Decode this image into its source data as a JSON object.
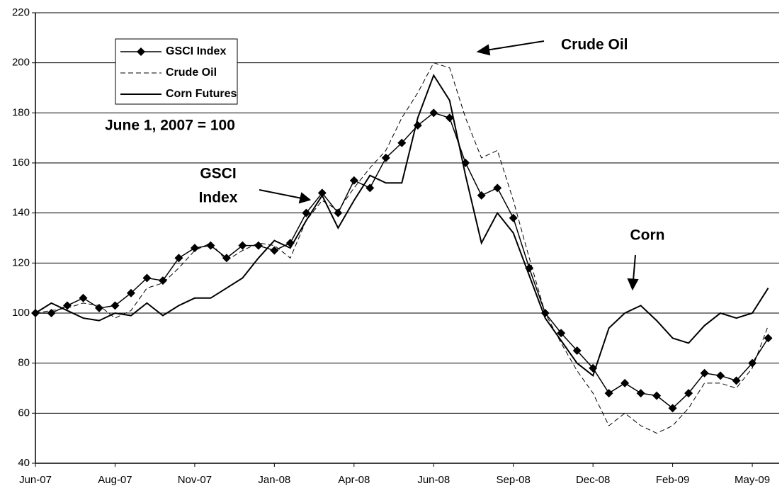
{
  "chart_data": {
    "type": "line",
    "subtitle": "June 1, 2007 = 100",
    "annotations": [
      "Crude Oil",
      "GSCI",
      "Index",
      "Corn"
    ],
    "categories": [
      "Jun-07",
      null,
      null,
      null,
      null,
      "Aug-07",
      null,
      null,
      null,
      null,
      "Nov-07",
      null,
      null,
      null,
      null,
      "Jan-08",
      null,
      null,
      null,
      null,
      "Apr-08",
      null,
      null,
      null,
      null,
      "Jun-08",
      null,
      null,
      null,
      null,
      "Sep-08",
      null,
      null,
      null,
      null,
      "Dec-08",
      null,
      null,
      null,
      null,
      "Feb-09",
      null,
      null,
      null,
      null,
      "May-09",
      null
    ],
    "ylim": [
      40,
      220
    ],
    "yticks": [
      40,
      60,
      80,
      100,
      120,
      140,
      160,
      180,
      200,
      220
    ],
    "grid": true,
    "legend": "upper-left",
    "series": [
      {
        "name": "GSCI Index",
        "color": "#000000",
        "marker": "diamond",
        "line_style": "solid",
        "values": [
          100,
          100,
          103,
          106,
          102,
          103,
          108,
          114,
          113,
          122,
          126,
          127,
          122,
          127,
          127,
          125,
          128,
          140,
          148,
          140,
          153,
          150,
          162,
          168,
          175,
          180,
          178,
          160,
          147,
          150,
          138,
          118,
          100,
          92,
          85,
          78,
          68,
          72,
          68,
          67,
          62,
          68,
          76,
          75,
          73,
          80,
          90
        ]
      },
      {
        "name": "Crude Oil",
        "color": "#000000",
        "line_style": "dashed",
        "values": [
          100,
          101,
          102,
          104,
          103,
          98,
          101,
          110,
          112,
          118,
          125,
          128,
          121,
          125,
          128,
          127,
          122,
          137,
          145,
          141,
          150,
          158,
          165,
          178,
          188,
          200,
          198,
          178,
          162,
          165,
          145,
          122,
          100,
          88,
          77,
          68,
          55,
          60,
          55,
          52,
          55,
          62,
          72,
          72,
          70,
          78,
          95
        ]
      },
      {
        "name": "Corn Futures",
        "color": "#000000",
        "line_style": "solid",
        "values": [
          100,
          104,
          101,
          98,
          97,
          100,
          99,
          104,
          99,
          103,
          106,
          106,
          110,
          114,
          122,
          129,
          126,
          137,
          147,
          134,
          145,
          155,
          152,
          152,
          178,
          195,
          185,
          155,
          128,
          140,
          132,
          115,
          98,
          89,
          80,
          75,
          94,
          100,
          103,
          97,
          90,
          88,
          95,
          100,
          98,
          100,
          110
        ]
      }
    ]
  }
}
